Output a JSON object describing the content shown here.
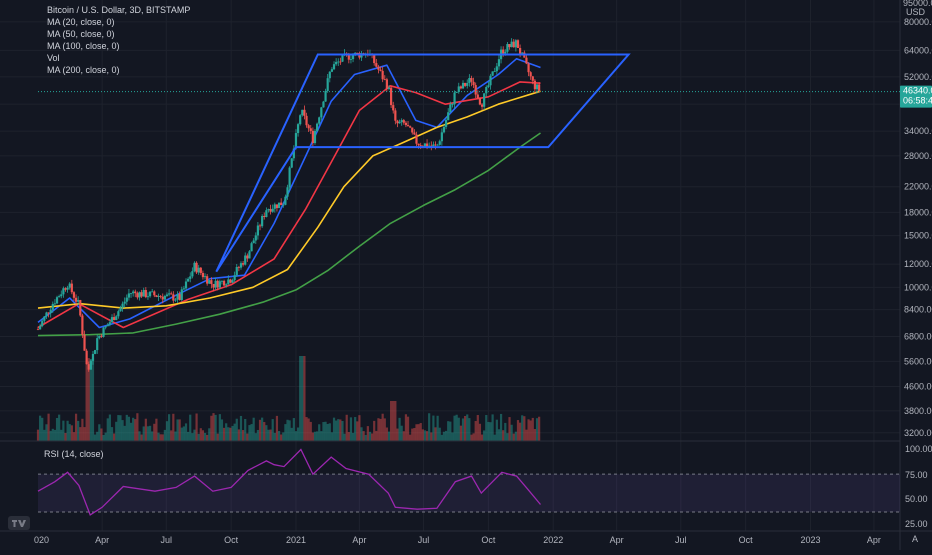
{
  "header": {
    "title": "Bitcoin / U.S. Dollar, 3D, BITSTAMP",
    "indicators": [
      "MA (20, close, 0)",
      "MA (50, close, 0)",
      "MA (100, close, 0)",
      "Vol",
      "MA (200, close, 0)"
    ]
  },
  "price_axis": {
    "currency": "USD",
    "top_partial": "95000.00",
    "current_price": "46340.00",
    "countdown": "06:58:46",
    "colors": {
      "current_tag": "#26a69a"
    }
  },
  "rsi": {
    "label": "RSI (14, close)",
    "ticks": [
      "100.00",
      "75.00",
      "50.00",
      "25.00"
    ],
    "color": "#9c27b0"
  },
  "time_axis": {
    "first_partial": "020",
    "end_glyph": "A"
  },
  "chart_data": {
    "type": "line",
    "y_scale": "log",
    "ylim": [
      3000,
      95000
    ],
    "y_ticks": [
      80000,
      64000,
      52000,
      42000,
      34000,
      28000,
      22000,
      18000,
      15000,
      12000,
      10000,
      8400,
      6800,
      5600,
      4600,
      3800,
      3200
    ],
    "x_ticks": [
      "Apr",
      "Jul",
      "Oct",
      "2021",
      "Apr",
      "Jul",
      "Oct",
      "2022",
      "Apr",
      "Jul",
      "Oct",
      "2023",
      "Apr"
    ],
    "price_path": [
      [
        "2020-01-01",
        7200
      ],
      [
        "2020-01-20",
        8700
      ],
      [
        "2020-02-12",
        10300
      ],
      [
        "2020-02-28",
        8700
      ],
      [
        "2020-03-12",
        5000
      ],
      [
        "2020-03-25",
        6700
      ],
      [
        "2020-04-30",
        8700
      ],
      [
        "2020-05-10",
        9600
      ],
      [
        "2020-06-15",
        9400
      ],
      [
        "2020-07-20",
        9200
      ],
      [
        "2020-08-10",
        11800
      ],
      [
        "2020-09-05",
        10200
      ],
      [
        "2020-10-01",
        10700
      ],
      [
        "2020-10-25",
        13000
      ],
      [
        "2020-11-20",
        18500
      ],
      [
        "2020-12-15",
        19500
      ],
      [
        "2021-01-08",
        40000
      ],
      [
        "2021-01-25",
        32000
      ],
      [
        "2021-02-20",
        56000
      ],
      [
        "2021-03-13",
        61000
      ],
      [
        "2021-04-14",
        63000
      ],
      [
        "2021-05-12",
        48000
      ],
      [
        "2021-05-22",
        36000
      ],
      [
        "2021-06-05",
        36000
      ],
      [
        "2021-06-22",
        31000
      ],
      [
        "2021-07-20",
        30000
      ],
      [
        "2021-08-15",
        46000
      ],
      [
        "2021-09-07",
        51000
      ],
      [
        "2021-09-21",
        42000
      ],
      [
        "2021-10-20",
        64000
      ],
      [
        "2021-11-10",
        68000
      ],
      [
        "2021-12-04",
        49000
      ],
      [
        "2021-12-14",
        46340
      ]
    ],
    "series": [
      {
        "name": "MA (20, close, 0)",
        "color": "#2962ff",
        "values": [
          [
            "2020-01-01",
            7600
          ],
          [
            "2020-02-15",
            9200
          ],
          [
            "2020-03-28",
            7300
          ],
          [
            "2020-05-10",
            7800
          ],
          [
            "2020-07-15",
            9400
          ],
          [
            "2020-09-01",
            10700
          ],
          [
            "2020-10-20",
            11000
          ],
          [
            "2020-12-01",
            16500
          ],
          [
            "2021-01-15",
            28000
          ],
          [
            "2021-02-20",
            43000
          ],
          [
            "2021-03-25",
            53000
          ],
          [
            "2021-05-10",
            57000
          ],
          [
            "2021-06-20",
            37000
          ],
          [
            "2021-07-20",
            35000
          ],
          [
            "2021-09-01",
            45000
          ],
          [
            "2021-10-15",
            53000
          ],
          [
            "2021-11-10",
            60000
          ],
          [
            "2021-12-14",
            56000
          ]
        ]
      },
      {
        "name": "MA (50, close, 0)",
        "color": "#f23645",
        "values": [
          [
            "2020-01-01",
            7300
          ],
          [
            "2020-02-28",
            8800
          ],
          [
            "2020-05-01",
            7300
          ],
          [
            "2020-08-01",
            9100
          ],
          [
            "2020-10-01",
            10200
          ],
          [
            "2020-12-01",
            12500
          ],
          [
            "2021-01-15",
            18500
          ],
          [
            "2021-02-25",
            28000
          ],
          [
            "2021-04-01",
            40000
          ],
          [
            "2021-05-15",
            48500
          ],
          [
            "2021-06-20",
            46000
          ],
          [
            "2021-08-01",
            42000
          ],
          [
            "2021-10-01",
            44500
          ],
          [
            "2021-11-15",
            50000
          ],
          [
            "2021-12-14",
            49500
          ]
        ]
      },
      {
        "name": "MA (100, close, 0)",
        "color": "#ffca28",
        "values": [
          [
            "2020-01-01",
            8500
          ],
          [
            "2020-03-01",
            8800
          ],
          [
            "2020-05-01",
            8500
          ],
          [
            "2020-07-01",
            8650
          ],
          [
            "2020-09-01",
            9200
          ],
          [
            "2020-11-01",
            10000
          ],
          [
            "2020-12-20",
            11500
          ],
          [
            "2021-02-01",
            16000
          ],
          [
            "2021-03-10",
            22000
          ],
          [
            "2021-04-20",
            28000
          ],
          [
            "2021-06-01",
            31000
          ],
          [
            "2021-07-20",
            35000
          ],
          [
            "2021-09-01",
            38000
          ],
          [
            "2021-10-15",
            42000
          ],
          [
            "2021-12-14",
            46500
          ]
        ]
      },
      {
        "name": "MA (200, close, 0)",
        "color": "#43a047",
        "values": [
          [
            "2020-01-01",
            6850
          ],
          [
            "2020-03-15",
            6900
          ],
          [
            "2020-05-15",
            7000
          ],
          [
            "2020-07-15",
            7500
          ],
          [
            "2020-09-15",
            8100
          ],
          [
            "2020-11-15",
            8900
          ],
          [
            "2021-01-01",
            9800
          ],
          [
            "2021-02-15",
            11400
          ],
          [
            "2021-04-01",
            13800
          ],
          [
            "2021-05-15",
            16500
          ],
          [
            "2021-07-01",
            19000
          ],
          [
            "2021-08-15",
            21500
          ],
          [
            "2021-10-01",
            25000
          ],
          [
            "2021-11-15",
            30000
          ],
          [
            "2021-12-14",
            33500
          ]
        ]
      }
    ],
    "channel": {
      "color": "#2962ff",
      "points": [
        [
          "2020-09-10",
          11300
        ],
        [
          "2021-02-01",
          62000
        ],
        [
          "2022-04-18",
          62000
        ],
        [
          "2021-12-25",
          30000
        ],
        [
          "2021-01-01",
          30000
        ]
      ]
    },
    "rsi_series": [
      [
        "2020-01-01",
        52
      ],
      [
        "2020-01-25",
        62
      ],
      [
        "2020-02-12",
        72
      ],
      [
        "2020-02-28",
        58
      ],
      [
        "2020-03-15",
        27
      ],
      [
        "2020-04-01",
        35
      ],
      [
        "2020-05-01",
        57
      ],
      [
        "2020-06-15",
        52
      ],
      [
        "2020-07-15",
        56
      ],
      [
        "2020-08-10",
        68
      ],
      [
        "2020-09-05",
        52
      ],
      [
        "2020-10-01",
        56
      ],
      [
        "2020-10-25",
        74
      ],
      [
        "2020-11-20",
        84
      ],
      [
        "2020-12-01",
        80
      ],
      [
        "2020-12-15",
        78
      ],
      [
        "2021-01-08",
        96
      ],
      [
        "2021-01-25",
        70
      ],
      [
        "2021-02-20",
        88
      ],
      [
        "2021-03-13",
        76
      ],
      [
        "2021-04-14",
        70
      ],
      [
        "2021-05-12",
        50
      ],
      [
        "2021-05-22",
        35
      ],
      [
        "2021-06-22",
        33
      ],
      [
        "2021-07-20",
        34
      ],
      [
        "2021-08-15",
        62
      ],
      [
        "2021-09-07",
        68
      ],
      [
        "2021-09-21",
        50
      ],
      [
        "2021-10-20",
        72
      ],
      [
        "2021-11-10",
        68
      ],
      [
        "2021-11-25",
        55
      ],
      [
        "2021-12-14",
        38
      ]
    ],
    "rsi_ylim": [
      10,
      105
    ],
    "rsi_bands": [
      70,
      30
    ]
  }
}
